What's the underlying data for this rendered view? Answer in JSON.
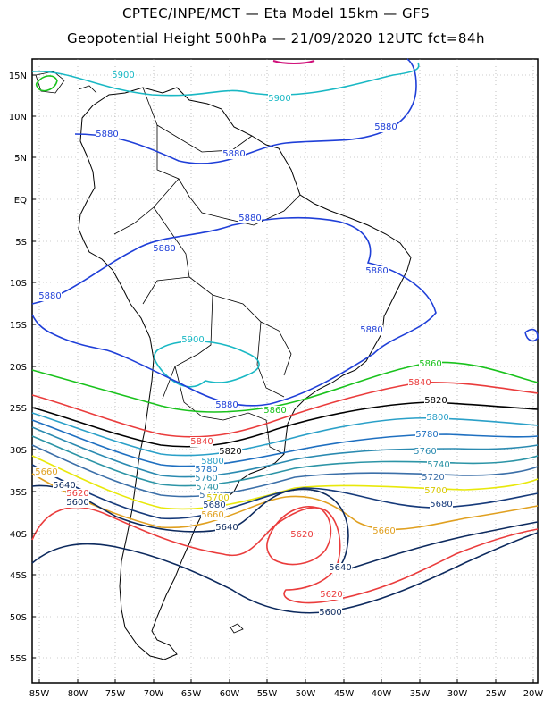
{
  "title_line1": "CPTEC/INPE/MCT  —   Eta Model 15km  —  GFS",
  "title_line2": "Geopotential Height 500hPa  —  21/09/2020  12UTC  fct=84h",
  "y_ticks": [
    "15N",
    "10N",
    "5N",
    "EQ",
    "5S",
    "10S",
    "15S",
    "20S",
    "25S",
    "30S",
    "35S",
    "40S",
    "45S",
    "50S",
    "55S"
  ],
  "x_ticks": [
    "85W",
    "80W",
    "75W",
    "70W",
    "65W",
    "60W",
    "55W",
    "50W",
    "45W",
    "40W",
    "35W",
    "30W",
    "25W",
    "20W"
  ],
  "contours": [
    {
      "level": "5900",
      "color": "#19b8c4"
    },
    {
      "level": "5880",
      "color": "#1f3fd8"
    },
    {
      "level": "5860",
      "color": "#19c21c"
    },
    {
      "level": "5840",
      "color": "#ea3c3c"
    },
    {
      "level": "5820",
      "color": "#000000"
    },
    {
      "level": "5800",
      "color": "#2aa0c8"
    },
    {
      "level": "5780",
      "color": "#1e6fc0"
    },
    {
      "level": "5760",
      "color": "#2a8ab0"
    },
    {
      "level": "5740",
      "color": "#2c94a6"
    },
    {
      "level": "5720",
      "color": "#3b6fa8"
    },
    {
      "level": "5700",
      "color": "#e8e80a"
    },
    {
      "level": "5680",
      "color": "#163a7a"
    },
    {
      "level": "5660",
      "color": "#e0a020"
    },
    {
      "level": "5640",
      "color": "#0d2a5e"
    },
    {
      "level": "5620",
      "color": "#ea3c3c"
    },
    {
      "level": "5600",
      "color": "#0d2a5e"
    }
  ],
  "contour_labels": [
    {
      "text": "5900",
      "color": "#19b8c4"
    },
    {
      "text": "5900",
      "color": "#19b8c4"
    },
    {
      "text": "5900",
      "color": "#19b8c4"
    },
    {
      "text": "5880",
      "color": "#1f3fd8"
    },
    {
      "text": "5880",
      "color": "#1f3fd8"
    },
    {
      "text": "5880",
      "color": "#1f3fd8"
    },
    {
      "text": "5880",
      "color": "#1f3fd8"
    },
    {
      "text": "5880",
      "color": "#1f3fd8"
    },
    {
      "text": "5880",
      "color": "#1f3fd8"
    },
    {
      "text": "5880",
      "color": "#1f3fd8"
    },
    {
      "text": "5880",
      "color": "#1f3fd8"
    },
    {
      "text": "5880",
      "color": "#1f3fd8"
    },
    {
      "text": "5860",
      "color": "#19c21c"
    },
    {
      "text": "5860",
      "color": "#19c21c"
    },
    {
      "text": "5840",
      "color": "#ea3c3c"
    },
    {
      "text": "5840",
      "color": "#ea3c3c"
    },
    {
      "text": "5820",
      "color": "#000000"
    },
    {
      "text": "5820",
      "color": "#000000"
    },
    {
      "text": "5800",
      "color": "#2aa0c8"
    },
    {
      "text": "5800",
      "color": "#2aa0c8"
    },
    {
      "text": "5780",
      "color": "#1e6fc0"
    },
    {
      "text": "5780",
      "color": "#1e6fc0"
    },
    {
      "text": "5760",
      "color": "#2a8ab0"
    },
    {
      "text": "5760",
      "color": "#2a8ab0"
    },
    {
      "text": "5740",
      "color": "#2c94a6"
    },
    {
      "text": "5740",
      "color": "#2c94a6"
    },
    {
      "text": "5720",
      "color": "#3b6fa8"
    },
    {
      "text": "5720",
      "color": "#3b6fa8"
    },
    {
      "text": "5700",
      "color": "#d8c800"
    },
    {
      "text": "5700",
      "color": "#d8c800"
    },
    {
      "text": "5680",
      "color": "#163a7a"
    },
    {
      "text": "5680",
      "color": "#163a7a"
    },
    {
      "text": "5660",
      "color": "#e0a020"
    },
    {
      "text": "5660",
      "color": "#e0a020"
    },
    {
      "text": "5660",
      "color": "#e0a020"
    },
    {
      "text": "5640",
      "color": "#0d2a5e"
    },
    {
      "text": "5640",
      "color": "#0d2a5e"
    },
    {
      "text": "5640",
      "color": "#0d2a5e"
    },
    {
      "text": "5620",
      "color": "#ea3c3c"
    },
    {
      "text": "5620",
      "color": "#ea3c3c"
    },
    {
      "text": "5620",
      "color": "#ea3c3c"
    },
    {
      "text": "5600",
      "color": "#0d2a5e"
    },
    {
      "text": "5600",
      "color": "#0d2a5e"
    }
  ]
}
